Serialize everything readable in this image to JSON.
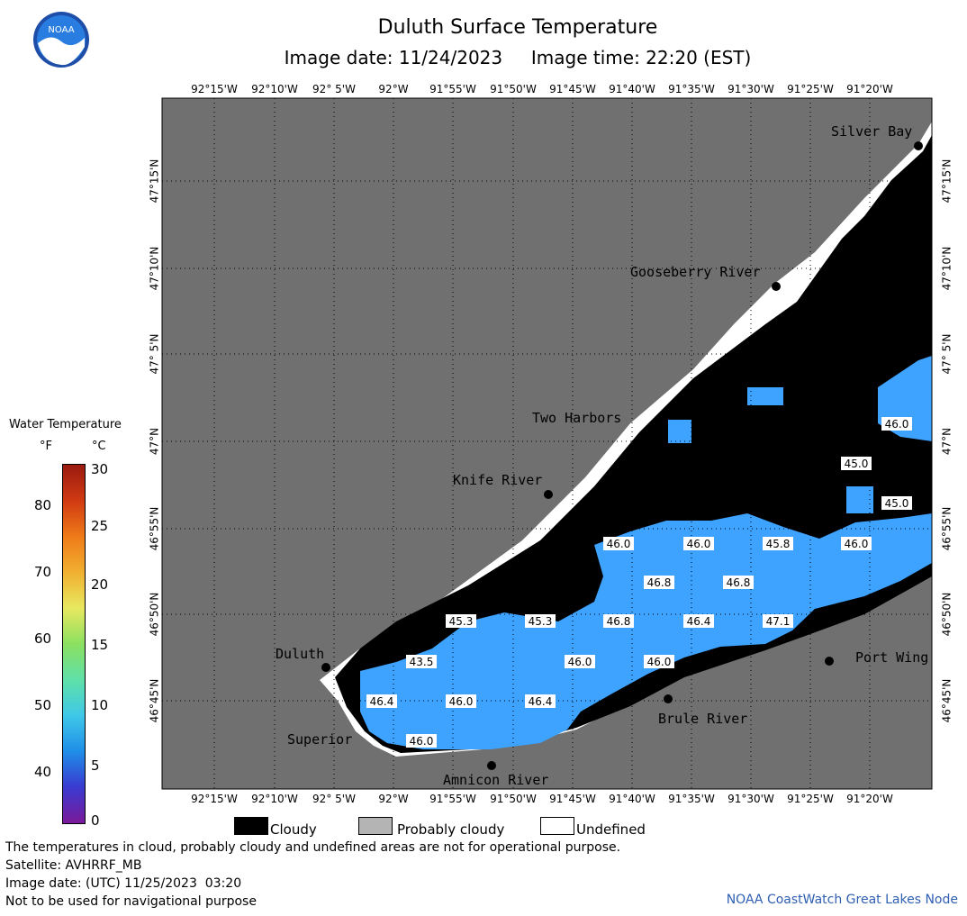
{
  "header": {
    "title": "Duluth Surface Temperature",
    "subtitle": "Image date: 11/24/2023     Image time: 22:20 (EST)"
  },
  "logo": {
    "text": "NOAA",
    "icon": "noaa-logo-icon"
  },
  "longitudes": [
    "92°15'W",
    "92°10'W",
    "92° 5'W",
    "92°W",
    "91°55'W",
    "91°50'W",
    "91°45'W",
    "91°40'W",
    "91°35'W",
    "91°30'W",
    "91°25'W",
    "91°20'W"
  ],
  "latitudes": [
    "47°15'N",
    "47°10'N",
    "47° 5'N",
    "47°N",
    "46°55'N",
    "46°50'N",
    "46°45'N"
  ],
  "places": {
    "silver_bay": "Silver Bay",
    "gooseberry_river": "Gooseberry River",
    "two_harbors": "Two Harbors",
    "knife_river": "Knife River",
    "duluth": "Duluth",
    "superior": "Superior",
    "amnicon_river": "Amnicon River",
    "brule_river": "Brule River",
    "port_wing": "Port Wing"
  },
  "temperature_labels": [
    "46.0",
    "45.0",
    "45.0",
    "46.0",
    "46.0",
    "45.8",
    "46.0",
    "46.8",
    "46.8",
    "45.3",
    "45.3",
    "46.8",
    "46.4",
    "47.1",
    "43.5",
    "46.0",
    "46.0",
    "46.4",
    "46.0",
    "46.4",
    "46.0"
  ],
  "scale": {
    "title": "Water Temperature",
    "unit_f": "°F",
    "unit_c": "°C",
    "f_ticks": [
      "80",
      "70",
      "60",
      "50",
      "40"
    ],
    "c_ticks": [
      "30",
      "25",
      "20",
      "15",
      "10",
      "5",
      "0"
    ],
    "colors": [
      "#7a1a9a",
      "#3a3ad0",
      "#1f8ee8",
      "#3fc8e8",
      "#5fe0a8",
      "#8be060",
      "#e8e860",
      "#f0b030",
      "#ef7a18",
      "#d03a12",
      "#9a1a10"
    ]
  },
  "legend": {
    "cloudy": "Cloudy",
    "probably_cloudy": "Probably cloudy",
    "undefined": "Undefined"
  },
  "footer": {
    "line1": "The temperatures in cloud, probably cloudy and undefined areas are not for operational purpose.",
    "line2": "Satellite: AVHRRF_MB",
    "line3": "Image date: (UTC) 11/25/2023  03:20",
    "line4": "Not to be used for navigational purpose",
    "credit": "NOAA CoastWatch Great Lakes Node"
  },
  "colors": {
    "land": "#707070",
    "cloud": "#000000",
    "undefined": "#ffffff",
    "water": "#3ea2ff",
    "probably_cloudy": "#b4b4b4"
  }
}
